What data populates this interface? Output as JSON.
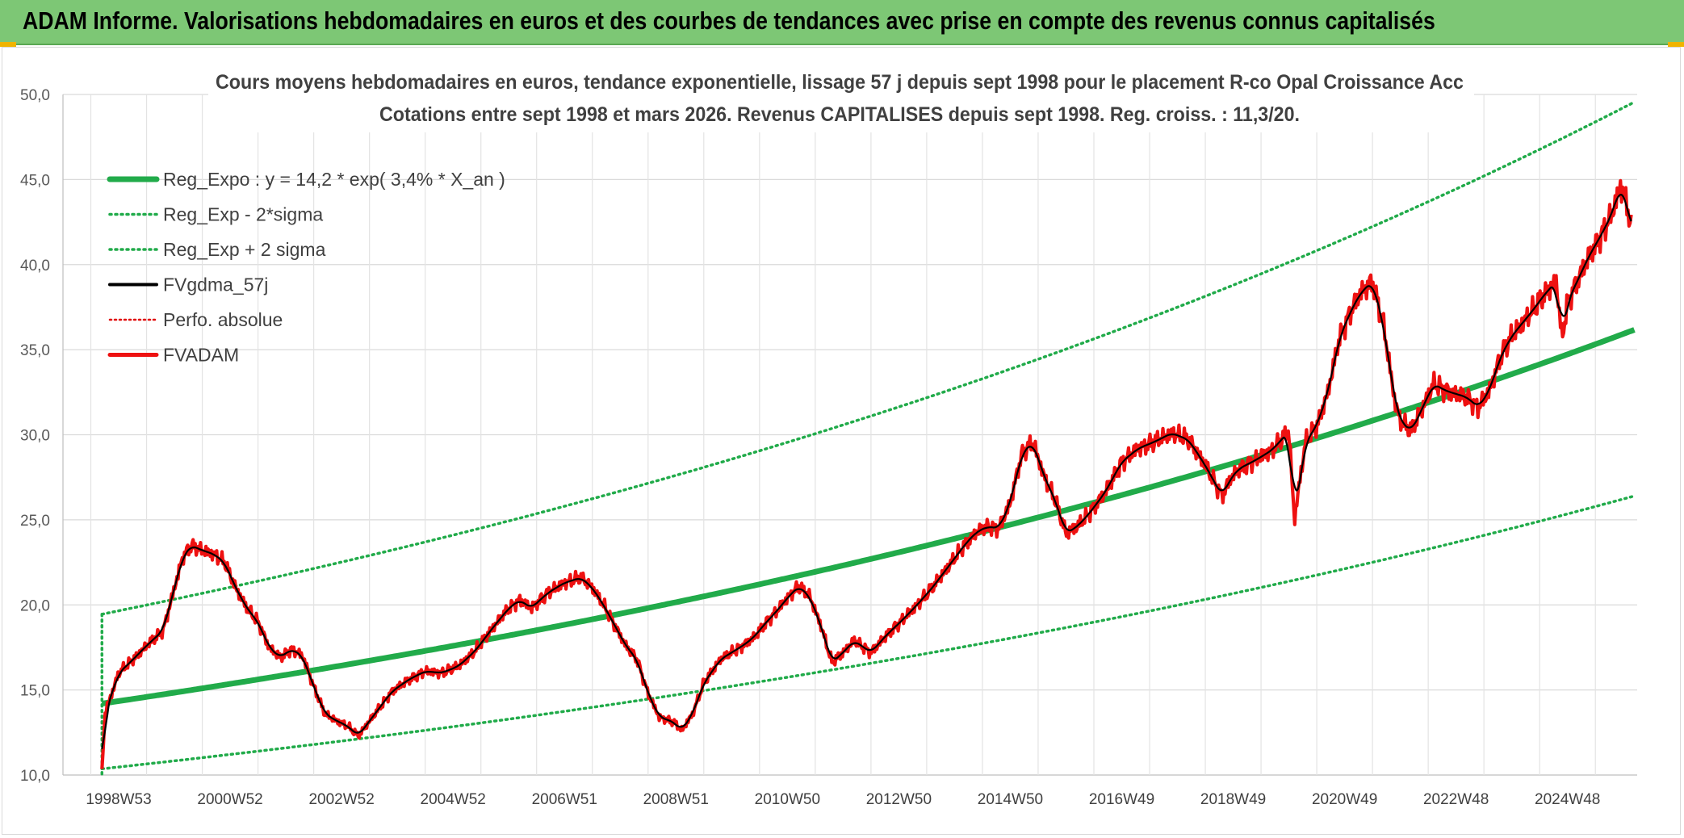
{
  "banner": {
    "title": "ADAM Informe. Valorisations hebdomadaires en euros et des courbes de tendances avec prise en compte des revenus connus capitalisés"
  },
  "chart_data": {
    "type": "line",
    "title": "Cours moyens hebdomadaires en euros, tendance exponentielle, lissage 57 j depuis sept 1998 pour le placement R-co Opal Croissance Acc",
    "subtitle": "Cotations entre sept 1998 et mars 2026. Revenus CAPITALISES depuis sept 1998. Reg. croiss. : 11,3/20.",
    "xlabel": "",
    "ylabel": "",
    "xlim": [
      1998.7,
      2026.2
    ],
    "ylim": [
      10,
      50
    ],
    "grid": true,
    "legend_position": "top-left",
    "y_ticks": [
      "10,0",
      "15,0",
      "20,0",
      "25,0",
      "30,0",
      "35,0",
      "40,0",
      "45,0",
      "50,0"
    ],
    "x_tick_labels": [
      "1998W53",
      "2000W52",
      "2002W52",
      "2004W52",
      "2006W51",
      "2008W51",
      "2010W50",
      "2012W50",
      "2014W50",
      "2016W49",
      "2018W49",
      "2020W49",
      "2022W48",
      "2024W48"
    ],
    "x_ticks_years": [
      1999,
      2001,
      2003,
      2005,
      2007,
      2009,
      2011,
      2013,
      2015,
      2017,
      2019,
      2021,
      2023,
      2025
    ],
    "regression": {
      "a": 14.2,
      "rate": 0.034,
      "start": 1998.7,
      "end": 2026.2,
      "sigma_factor": 1.37
    },
    "series": [
      {
        "name": "Reg_Expo : y = 14,2 * exp( 3,4% *  X_an )",
        "color": "#21ab4a",
        "style": "solid-thick"
      },
      {
        "name": "Reg_Exp - 2*sigma",
        "color": "#21ab4a",
        "style": "dotted"
      },
      {
        "name": "Reg_Exp + 2 sigma",
        "color": "#21ab4a",
        "style": "dotted"
      },
      {
        "name": "FVgdma_57j",
        "color": "#000000",
        "style": "solid"
      },
      {
        "name": "Perfo. absolue",
        "color": "#e00000",
        "style": "dotted"
      },
      {
        "name": "FVADAM",
        "color": "#ee1111",
        "style": "solid-thick",
        "x": [
          1998.7,
          1998.75,
          1998.8,
          1998.9,
          1999.0,
          1999.2,
          1999.5,
          1999.8,
          2000.0,
          2000.15,
          2000.3,
          2000.5,
          2000.7,
          2000.9,
          2001.1,
          2001.3,
          2001.5,
          2001.7,
          2001.9,
          2002.1,
          2002.3,
          2002.5,
          2002.7,
          2002.9,
          2003.1,
          2003.3,
          2003.6,
          2003.9,
          2004.2,
          2004.5,
          2004.8,
          2005.1,
          2005.4,
          2005.7,
          2006.0,
          2006.2,
          2006.4,
          2006.7,
          2007.0,
          2007.3,
          2007.5,
          2007.7,
          2007.9,
          2008.1,
          2008.3,
          2008.5,
          2008.7,
          2008.9,
          2009.0,
          2009.1,
          2009.3,
          2009.5,
          2009.8,
          2010.0,
          2010.2,
          2010.4,
          2010.6,
          2010.8,
          2011.0,
          2011.2,
          2011.4,
          2011.6,
          2011.8,
          2012.0,
          2012.2,
          2012.5,
          2012.8,
          2013.0,
          2013.3,
          2013.6,
          2013.9,
          2014.2,
          2014.4,
          2014.6,
          2014.8,
          2015.0,
          2015.2,
          2015.4,
          2015.6,
          2015.8,
          2016.0,
          2016.2,
          2016.4,
          2016.7,
          2017.0,
          2017.3,
          2017.6,
          2017.9,
          2018.2,
          2018.5,
          2018.8,
          2018.95,
          2019.1,
          2019.4,
          2019.7,
          2020.0,
          2020.1,
          2020.2,
          2020.3,
          2020.5,
          2020.7,
          2020.9,
          2021.1,
          2021.3,
          2021.5,
          2021.7,
          2021.9,
          2022.0,
          2022.2,
          2022.4,
          2022.6,
          2022.8,
          2023.0,
          2023.2,
          2023.4,
          2023.6,
          2023.8,
          2024.0,
          2024.2,
          2024.4,
          2024.6,
          2024.8,
          2024.9,
          2025.0,
          2025.2,
          2025.4,
          2025.6,
          2025.8,
          2025.95,
          2026.05,
          2026.15
        ],
        "values": [
          10.2,
          13.5,
          14.1,
          15.0,
          16.0,
          16.6,
          17.6,
          18.5,
          21.0,
          22.8,
          23.5,
          23.2,
          23.0,
          22.5,
          21.0,
          19.8,
          19.0,
          17.5,
          16.9,
          17.4,
          17.0,
          15.2,
          13.6,
          13.2,
          12.9,
          12.3,
          13.6,
          14.9,
          15.6,
          16.1,
          16.0,
          16.4,
          17.3,
          18.6,
          19.8,
          20.3,
          19.8,
          20.7,
          21.3,
          21.6,
          21.0,
          20.0,
          18.8,
          17.6,
          16.8,
          14.8,
          13.4,
          13.2,
          13.0,
          12.6,
          13.6,
          15.4,
          16.8,
          17.2,
          17.6,
          18.1,
          18.9,
          19.6,
          20.4,
          21.1,
          20.5,
          18.8,
          16.6,
          17.2,
          17.9,
          17.2,
          18.3,
          18.9,
          19.9,
          21.0,
          22.3,
          23.6,
          24.3,
          24.6,
          24.5,
          26.0,
          28.8,
          29.6,
          27.6,
          26.2,
          24.2,
          24.6,
          25.3,
          26.6,
          28.4,
          29.2,
          29.6,
          30.1,
          29.7,
          28.2,
          26.4,
          27.4,
          28.0,
          28.5,
          29.1,
          30.2,
          25.0,
          27.4,
          29.6,
          30.5,
          32.5,
          35.6,
          37.2,
          38.4,
          39.0,
          36.4,
          32.0,
          30.8,
          30.2,
          31.6,
          33.0,
          32.6,
          32.4,
          32.2,
          31.6,
          32.6,
          34.6,
          35.8,
          36.6,
          37.4,
          38.3,
          39.0,
          35.6,
          37.8,
          39.2,
          40.6,
          41.7,
          43.0,
          44.6,
          43.8,
          42.0
        ]
      }
    ]
  }
}
